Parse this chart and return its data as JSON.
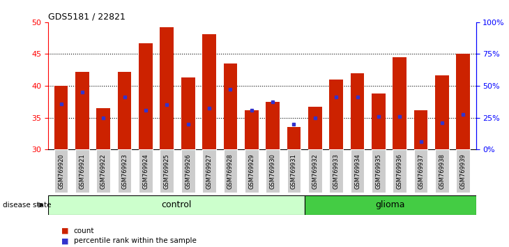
{
  "title": "GDS5181 / 22821",
  "samples": [
    "GSM769920",
    "GSM769921",
    "GSM769922",
    "GSM769923",
    "GSM769924",
    "GSM769925",
    "GSM769926",
    "GSM769927",
    "GSM769928",
    "GSM769929",
    "GSM769930",
    "GSM769931",
    "GSM769932",
    "GSM769933",
    "GSM769934",
    "GSM769935",
    "GSM769936",
    "GSM769937",
    "GSM769938",
    "GSM769939"
  ],
  "counts": [
    40.0,
    42.2,
    36.5,
    42.2,
    46.7,
    49.2,
    41.3,
    48.1,
    43.5,
    36.2,
    37.5,
    33.5,
    36.7,
    41.0,
    42.0,
    38.8,
    44.5,
    36.2,
    41.7,
    45.0
  ],
  "percentile_rank": [
    37.2,
    39.0,
    35.0,
    38.2,
    36.2,
    37.0,
    34.0,
    36.5,
    39.5,
    36.2,
    37.5,
    34.0,
    35.0,
    38.2,
    38.2,
    35.2,
    35.2,
    31.2,
    34.2,
    35.5
  ],
  "ymin": 30,
  "ymax": 50,
  "yticks_left": [
    30,
    35,
    40,
    45,
    50
  ],
  "yticks_right": [
    0,
    25,
    50,
    75,
    100
  ],
  "control_count": 12,
  "bar_color": "#cc2200",
  "blue_color": "#3333cc",
  "control_fill": "#ccffcc",
  "glioma_fill": "#44cc44",
  "tick_label_bg": "#cccccc",
  "control_label": "control",
  "glioma_label": "glioma",
  "disease_state_label": "disease state",
  "legend_count": "count",
  "legend_pct": "percentile rank within the sample"
}
